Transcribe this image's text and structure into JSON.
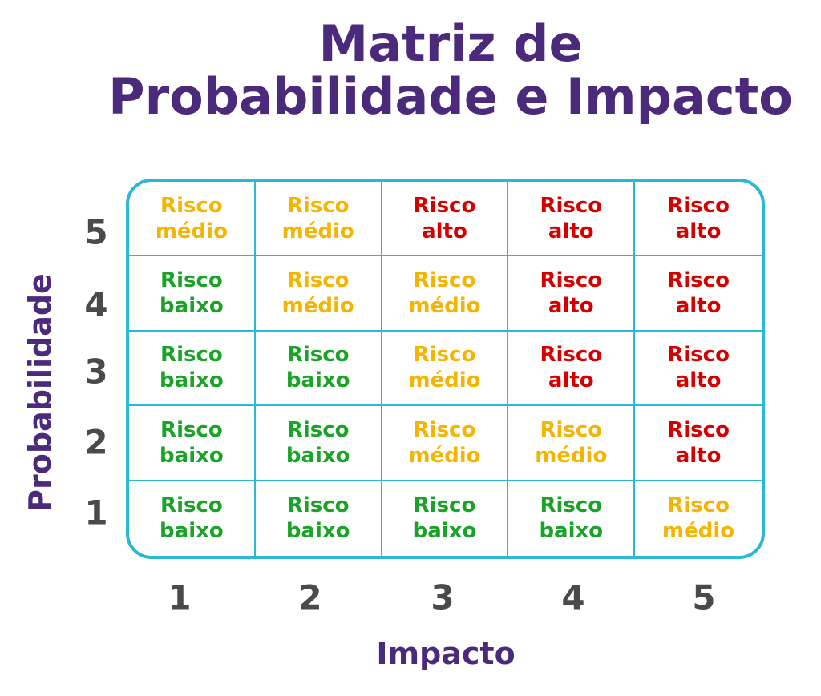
{
  "title": {
    "line1": "Matriz de",
    "line2": "Probabilidade e Impacto"
  },
  "axes": {
    "y_label": "Probabilidade",
    "x_label": "Impacto",
    "y_ticks": [
      "5",
      "4",
      "3",
      "2",
      "1"
    ],
    "x_ticks": [
      "1",
      "2",
      "3",
      "4",
      "5"
    ]
  },
  "colors": {
    "title": "#4b2a7c",
    "grid": "#2bb7d6",
    "baixo": "#1aa326",
    "medio": "#f5b400",
    "alto": "#d40000",
    "ticks": "#4a4a4a"
  },
  "matrix": {
    "rows": [
      {
        "probabilidade": "5",
        "cells": [
          {
            "line1": "Risco",
            "line2": "médio",
            "level": "medio"
          },
          {
            "line1": "Risco",
            "line2": "médio",
            "level": "medio"
          },
          {
            "line1": "Risco",
            "line2": "alto",
            "level": "alto"
          },
          {
            "line1": "Risco",
            "line2": "alto",
            "level": "alto"
          },
          {
            "line1": "Risco",
            "line2": "alto",
            "level": "alto"
          }
        ]
      },
      {
        "probabilidade": "4",
        "cells": [
          {
            "line1": "Risco",
            "line2": "baixo",
            "level": "baixo"
          },
          {
            "line1": "Risco",
            "line2": "médio",
            "level": "medio"
          },
          {
            "line1": "Risco",
            "line2": "médio",
            "level": "medio"
          },
          {
            "line1": "Risco",
            "line2": "alto",
            "level": "alto"
          },
          {
            "line1": "Risco",
            "line2": "alto",
            "level": "alto"
          }
        ]
      },
      {
        "probabilidade": "3",
        "cells": [
          {
            "line1": "Risco",
            "line2": "baixo",
            "level": "baixo"
          },
          {
            "line1": "Risco",
            "line2": "baixo",
            "level": "baixo"
          },
          {
            "line1": "Risco",
            "line2": "médio",
            "level": "medio"
          },
          {
            "line1": "Risco",
            "line2": "alto",
            "level": "alto"
          },
          {
            "line1": "Risco",
            "line2": "alto",
            "level": "alto"
          }
        ]
      },
      {
        "probabilidade": "2",
        "cells": [
          {
            "line1": "Risco",
            "line2": "baixo",
            "level": "baixo"
          },
          {
            "line1": "Risco",
            "line2": "baixo",
            "level": "baixo"
          },
          {
            "line1": "Risco",
            "line2": "médio",
            "level": "medio"
          },
          {
            "line1": "Risco",
            "line2": "médio",
            "level": "medio"
          },
          {
            "line1": "Risco",
            "line2": "alto",
            "level": "alto"
          }
        ]
      },
      {
        "probabilidade": "1",
        "cells": [
          {
            "line1": "Risco",
            "line2": "baixo",
            "level": "baixo"
          },
          {
            "line1": "Risco",
            "line2": "baixo",
            "level": "baixo"
          },
          {
            "line1": "Risco",
            "line2": "baixo",
            "level": "baixo"
          },
          {
            "line1": "Risco",
            "line2": "baixo",
            "level": "baixo"
          },
          {
            "line1": "Risco",
            "line2": "médio",
            "level": "medio"
          }
        ]
      }
    ]
  }
}
